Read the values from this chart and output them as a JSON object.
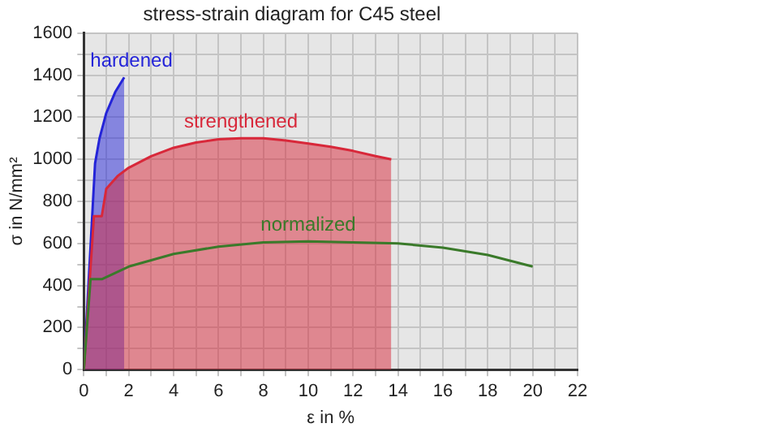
{
  "chart_data": {
    "type": "line",
    "title": "stress-strain diagram for C45 steel",
    "xlabel": "ε in %",
    "ylabel": "σ in N/mm²",
    "xlim": [
      0,
      22
    ],
    "xticks": [
      0,
      {
        "value": 1,
        "label": null
      },
      2,
      {
        "value": 3,
        "label": null
      },
      4,
      {
        "value": 5,
        "label": null
      },
      6,
      {
        "value": 7,
        "label": null
      },
      8,
      {
        "value": 9,
        "label": null
      },
      10,
      {
        "value": 11,
        "label": null
      },
      12,
      {
        "value": 13,
        "label": null
      },
      14,
      {
        "value": 15,
        "label": null
      },
      16,
      {
        "value": 17,
        "label": null
      },
      18,
      {
        "value": 19,
        "label": null
      },
      20,
      {
        "value": 21,
        "label": null
      },
      22
    ],
    "ylim": [
      0,
      1600
    ],
    "yticks": [
      0,
      {
        "value": 100,
        "label": null
      },
      200,
      {
        "value": 300,
        "label": null
      },
      400,
      {
        "value": 500,
        "label": null
      },
      600,
      {
        "value": 700,
        "label": null
      },
      800,
      {
        "value": 900,
        "label": null
      },
      1000,
      {
        "value": 1100,
        "label": null
      },
      1200,
      {
        "value": 1300,
        "label": null
      },
      1400,
      {
        "value": 1500,
        "label": null
      },
      1600
    ],
    "grid": true,
    "legend": false,
    "marker": "none",
    "line_style": "solid",
    "series": [
      {
        "name": "hardened",
        "type": "area",
        "color": "#2424d8",
        "x": [
          0,
          0.5,
          0.7,
          1.0,
          1.4,
          1.8
        ],
        "values": [
          0,
          980,
          1100,
          1220,
          1320,
          1390
        ]
      },
      {
        "name": "strengthened",
        "type": "area",
        "color": "#d8283a",
        "x": [
          0,
          0.45,
          0.8,
          1.0,
          1.5,
          2,
          3,
          4,
          5,
          6,
          7,
          8,
          9,
          10,
          11,
          12,
          13,
          13.7
        ],
        "values": [
          0,
          730,
          730,
          860,
          920,
          960,
          1015,
          1055,
          1080,
          1095,
          1100,
          1100,
          1090,
          1075,
          1060,
          1040,
          1015,
          1000
        ]
      },
      {
        "name": "normalized",
        "type": "line",
        "color": "#3a7a2a",
        "x": [
          0,
          0.3,
          0.8,
          2,
          4,
          6,
          8,
          10,
          12,
          14,
          16,
          18,
          20
        ],
        "values": [
          0,
          430,
          430,
          490,
          550,
          585,
          605,
          610,
          605,
          600,
          580,
          545,
          490
        ]
      }
    ]
  }
}
